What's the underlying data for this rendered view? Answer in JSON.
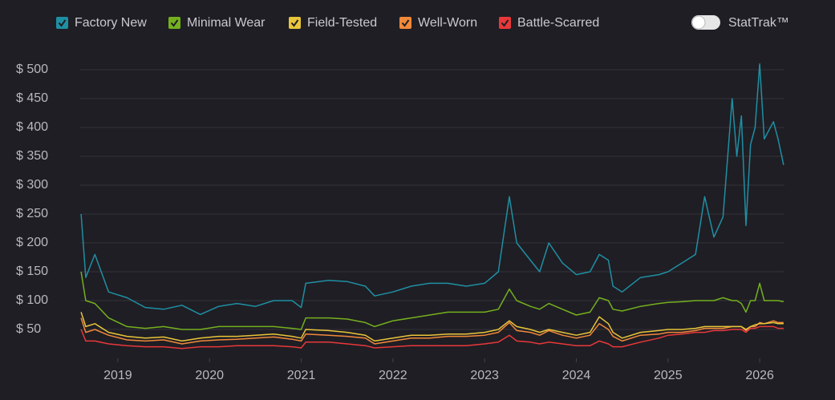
{
  "chart_data": {
    "type": "line",
    "toggle": {
      "label": "StatTrak™",
      "on": false
    },
    "x": [
      2018.6,
      2018.65,
      2018.75,
      2018.9,
      2019.1,
      2019.3,
      2019.5,
      2019.7,
      2019.9,
      2020.1,
      2020.3,
      2020.5,
      2020.7,
      2020.9,
      2021.0,
      2021.05,
      2021.3,
      2021.5,
      2021.7,
      2021.8,
      2022.0,
      2022.2,
      2022.4,
      2022.6,
      2022.8,
      2023.0,
      2023.15,
      2023.27,
      2023.35,
      2023.5,
      2023.6,
      2023.7,
      2023.85,
      2024.0,
      2024.15,
      2024.25,
      2024.35,
      2024.4,
      2024.5,
      2024.7,
      2024.9,
      2025.0,
      2025.15,
      2025.3,
      2025.4,
      2025.5,
      2025.6,
      2025.7,
      2025.75,
      2025.8,
      2025.85,
      2025.9,
      2025.95,
      2026.0,
      2026.05,
      2026.15,
      2026.2,
      2026.26
    ],
    "series": [
      {
        "name": "Factory New",
        "color": "#1f8fa3",
        "values": [
          250,
          140,
          180,
          115,
          105,
          88,
          85,
          92,
          76,
          90,
          95,
          90,
          100,
          100,
          88,
          130,
          135,
          133,
          125,
          108,
          115,
          125,
          130,
          130,
          125,
          130,
          150,
          280,
          200,
          170,
          150,
          200,
          165,
          145,
          150,
          180,
          170,
          125,
          115,
          140,
          145,
          150,
          165,
          180,
          280,
          210,
          245,
          450,
          350,
          420,
          230,
          370,
          400,
          510,
          380,
          410,
          380,
          335
        ]
      },
      {
        "name": "Minimal Wear",
        "color": "#74b01e",
        "values": [
          150,
          100,
          95,
          70,
          55,
          52,
          55,
          50,
          50,
          55,
          55,
          55,
          55,
          52,
          50,
          70,
          70,
          68,
          62,
          55,
          65,
          70,
          75,
          80,
          80,
          80,
          85,
          120,
          100,
          90,
          85,
          95,
          85,
          75,
          80,
          105,
          100,
          85,
          82,
          90,
          95,
          97,
          98,
          100,
          100,
          100,
          105,
          100,
          100,
          95,
          80,
          100,
          100,
          130,
          100,
          100,
          100,
          98
        ]
      },
      {
        "name": "Field-Tested",
        "color": "#e8c53a",
        "values": [
          80,
          55,
          60,
          45,
          38,
          35,
          37,
          30,
          35,
          38,
          38,
          40,
          42,
          38,
          35,
          50,
          48,
          45,
          40,
          30,
          35,
          40,
          40,
          42,
          42,
          45,
          50,
          65,
          55,
          50,
          45,
          50,
          45,
          40,
          45,
          72,
          60,
          45,
          35,
          45,
          48,
          50,
          50,
          52,
          55,
          55,
          55,
          55,
          55,
          55,
          50,
          55,
          58,
          60,
          60,
          62,
          60,
          60
        ]
      },
      {
        "name": "Well-Worn",
        "color": "#f0893a",
        "values": [
          70,
          45,
          50,
          40,
          32,
          30,
          32,
          25,
          30,
          32,
          33,
          35,
          37,
          33,
          30,
          42,
          40,
          38,
          35,
          25,
          30,
          35,
          35,
          38,
          38,
          40,
          45,
          62,
          48,
          45,
          40,
          48,
          40,
          35,
          40,
          60,
          50,
          38,
          30,
          40,
          42,
          45,
          45,
          48,
          52,
          52,
          52,
          55,
          55,
          55,
          48,
          55,
          55,
          62,
          60,
          65,
          62,
          62
        ]
      },
      {
        "name": "Battle-Scarred",
        "color": "#e8383a",
        "values": [
          50,
          30,
          30,
          25,
          22,
          20,
          20,
          17,
          20,
          20,
          22,
          22,
          22,
          20,
          18,
          28,
          28,
          25,
          22,
          18,
          20,
          22,
          22,
          22,
          22,
          25,
          28,
          40,
          30,
          28,
          25,
          28,
          25,
          22,
          22,
          30,
          25,
          20,
          20,
          28,
          35,
          40,
          42,
          45,
          45,
          48,
          48,
          50,
          50,
          50,
          45,
          52,
          52,
          55,
          55,
          55,
          52,
          52
        ]
      }
    ],
    "xlim": [
      2018.59,
      2026.27
    ],
    "xticks": [
      2019,
      2020,
      2021,
      2022,
      2023,
      2024,
      2025,
      2026
    ],
    "ylim": [
      0,
      530
    ],
    "yticks": [
      {
        "value": 50,
        "label": "$ 50"
      },
      {
        "value": 100,
        "label": "$ 100"
      },
      {
        "value": 150,
        "label": "$ 150"
      },
      {
        "value": 200,
        "label": "$ 200"
      },
      {
        "value": 250,
        "label": "$ 250"
      },
      {
        "value": 300,
        "label": "$ 300"
      },
      {
        "value": 350,
        "label": "$ 350"
      },
      {
        "value": 400,
        "label": "$ 400"
      },
      {
        "value": 450,
        "label": "$ 450"
      },
      {
        "value": 500,
        "label": "$ 500"
      }
    ],
    "grid": true
  }
}
